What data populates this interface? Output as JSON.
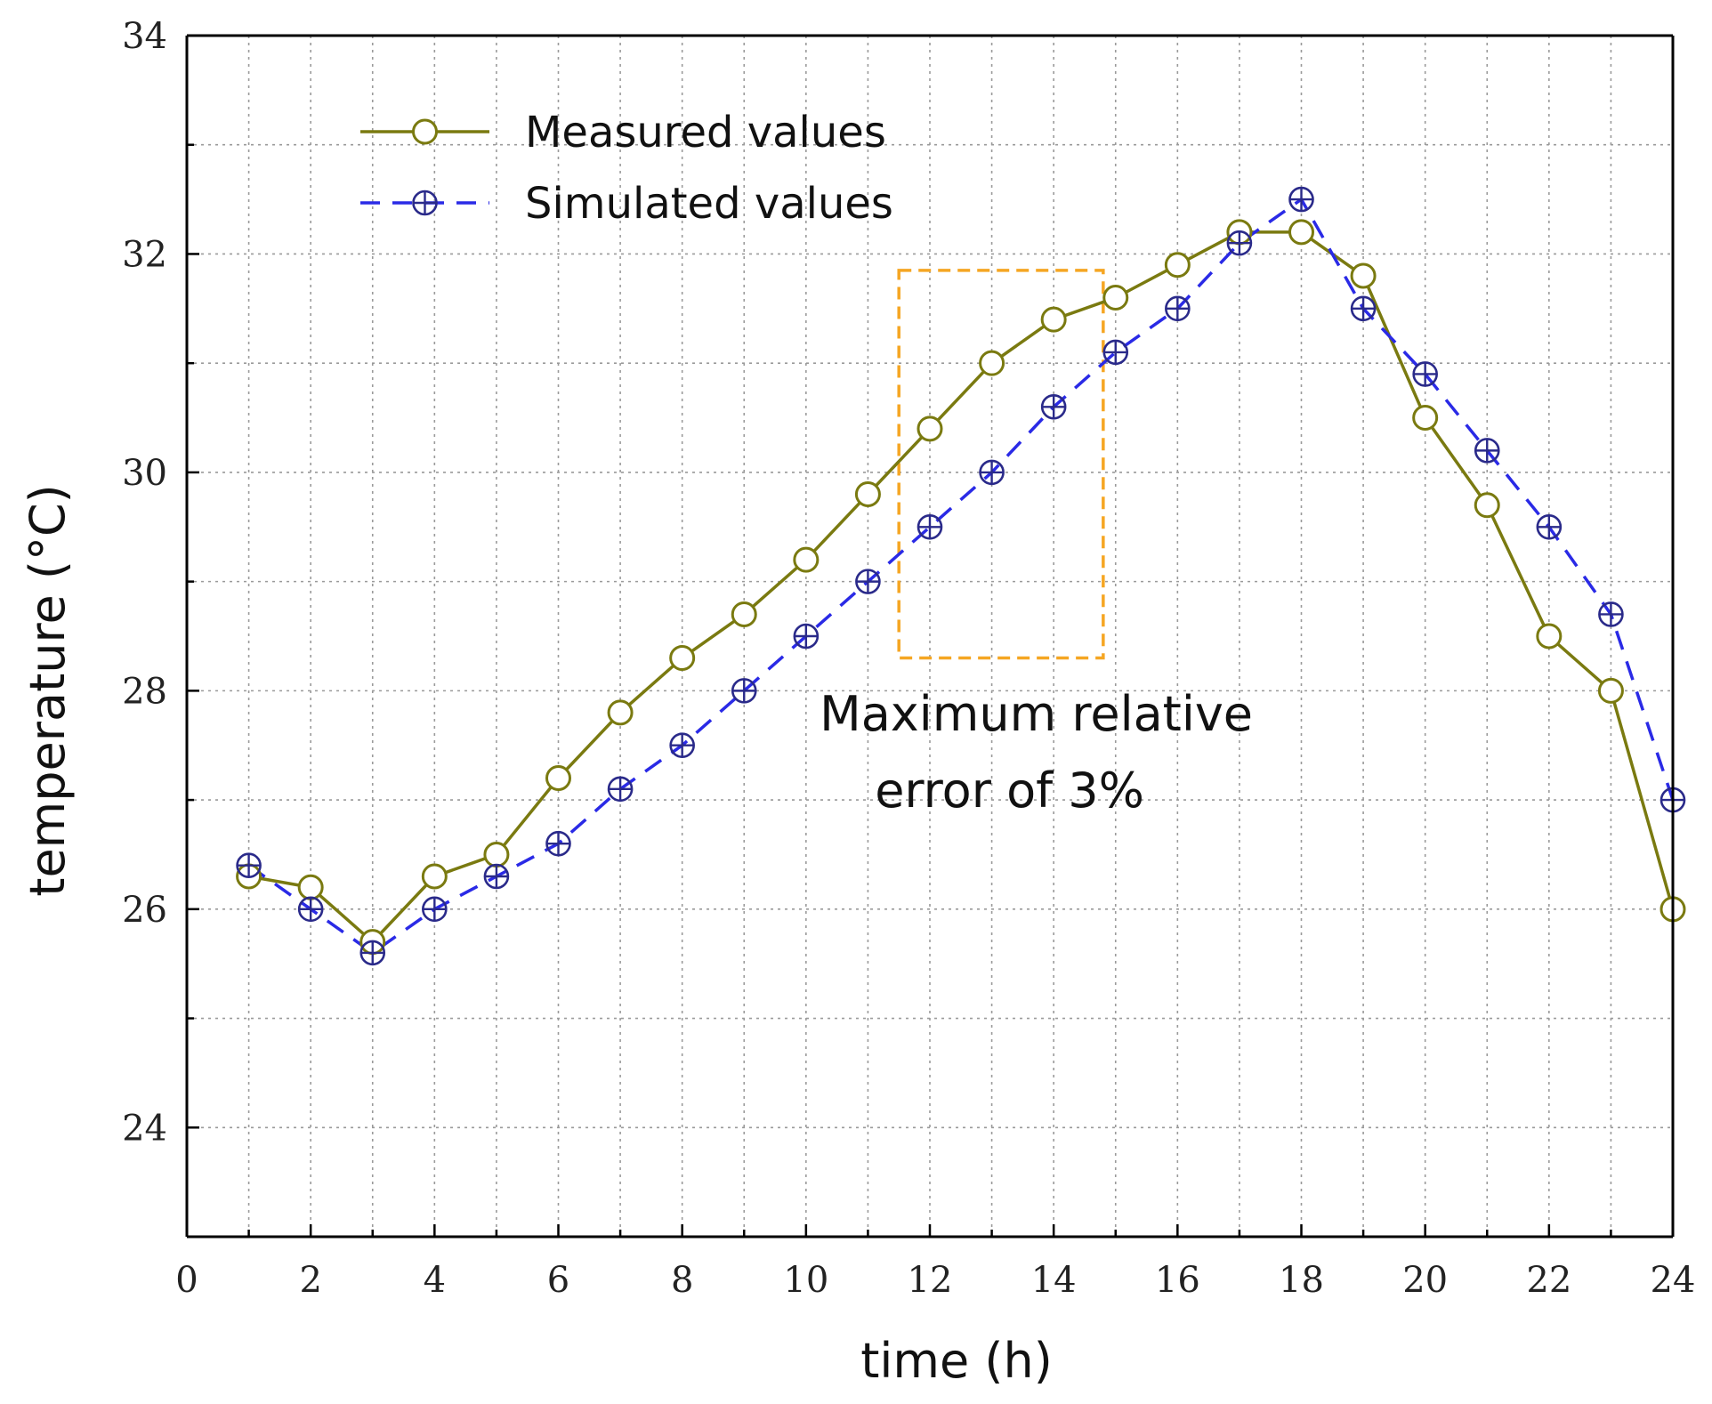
{
  "chart_data": {
    "type": "line",
    "title": "",
    "xlabel": "time (h)",
    "ylabel": "temperature (°C)",
    "xlim": [
      0,
      24
    ],
    "ylim": [
      23,
      34
    ],
    "xticks": [
      0,
      2,
      4,
      6,
      8,
      10,
      12,
      14,
      16,
      18,
      20,
      22,
      24
    ],
    "yticks": [
      24,
      26,
      28,
      30,
      32,
      34
    ],
    "xtick_labels": [
      "0",
      "2",
      "4",
      "6",
      "8",
      "10",
      "12",
      "14",
      "16",
      "18",
      "20",
      "22",
      "24"
    ],
    "ytick_labels": [
      "24",
      "26",
      "28",
      "30",
      "32",
      "34"
    ],
    "grid": true,
    "legend_position": "top-left",
    "x": [
      1,
      2,
      3,
      4,
      5,
      6,
      7,
      8,
      9,
      10,
      11,
      12,
      13,
      14,
      15,
      16,
      17,
      18,
      19,
      20,
      21,
      22,
      23,
      24
    ],
    "series": [
      {
        "name": "Measured values",
        "color": "#7a7a10",
        "line_style": "solid",
        "marker": "open-circle",
        "values": [
          26.3,
          26.2,
          25.7,
          26.3,
          26.5,
          27.2,
          27.8,
          28.3,
          28.7,
          29.2,
          29.8,
          30.4,
          31.0,
          31.4,
          31.6,
          31.9,
          32.2,
          32.2,
          31.8,
          30.5,
          29.7,
          28.5,
          28.0,
          26.0
        ]
      },
      {
        "name": "Simulated values",
        "color": "#2a2ae6",
        "marker_color": "#2a2a8a",
        "line_style": "dashed",
        "marker": "circle-plus",
        "values": [
          26.4,
          26.0,
          25.6,
          26.0,
          26.3,
          26.6,
          27.1,
          27.5,
          28.0,
          28.5,
          29.0,
          29.5,
          30.0,
          30.6,
          31.1,
          31.5,
          32.1,
          32.5,
          31.5,
          30.9,
          30.2,
          29.5,
          28.7,
          27.0
        ]
      }
    ],
    "annotation": {
      "text_lines": [
        "Maximum relative",
        "error of 3%"
      ],
      "box_x_range": [
        11.5,
        14.8
      ],
      "box_y_range": [
        28.3,
        31.85
      ],
      "box_color": "#f5a623",
      "text_anchor_point": [
        13.0,
        27.7
      ]
    }
  }
}
